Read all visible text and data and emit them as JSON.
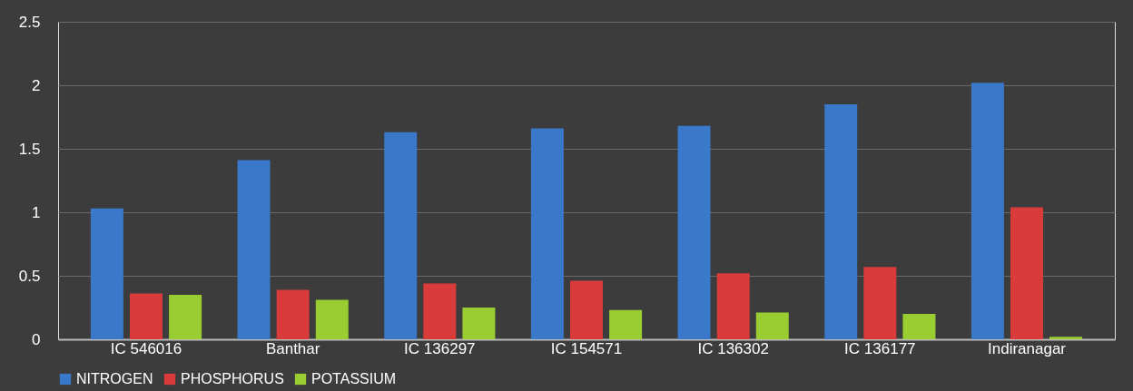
{
  "chart_data": {
    "type": "bar",
    "categories": [
      "IC 546016",
      "Banthar",
      "IC 136297",
      "IC 154571",
      "IC 136302",
      "IC 136177",
      "Indiranagar"
    ],
    "series": [
      {
        "name": "NITROGEN",
        "color": "#3a78c9",
        "values": [
          1.03,
          1.41,
          1.63,
          1.66,
          1.68,
          1.85,
          2.02
        ]
      },
      {
        "name": "PHOSPHORUS",
        "color": "#d93a3a",
        "values": [
          0.36,
          0.39,
          0.44,
          0.46,
          0.52,
          0.57,
          1.04
        ]
      },
      {
        "name": "POTASSIUM",
        "color": "#9acd32",
        "values": [
          0.35,
          0.31,
          0.25,
          0.23,
          0.21,
          0.2,
          0.02
        ]
      }
    ],
    "ylim": [
      0,
      2.5
    ],
    "yticks": [
      0,
      0.5,
      1,
      1.5,
      2,
      2.5
    ],
    "grid": "y",
    "legend": "bottom"
  }
}
